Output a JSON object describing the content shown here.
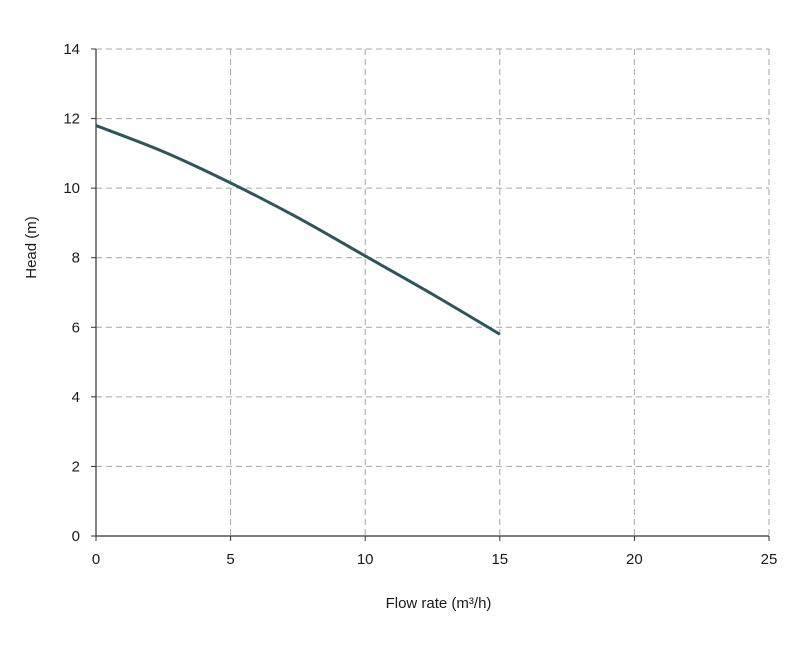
{
  "chart_data": {
    "type": "line",
    "title": "",
    "xlabel": "Flow rate (m³/h)",
    "ylabel": "Head (m)",
    "xlim": [
      0,
      25
    ],
    "ylim": [
      0,
      14
    ],
    "x_ticks": [
      0,
      5,
      10,
      15,
      20,
      25
    ],
    "y_ticks": [
      0,
      2,
      4,
      6,
      8,
      10,
      12,
      14
    ],
    "x_tick_labels": [
      "0",
      "5",
      "10",
      "15",
      "20",
      "25"
    ],
    "y_tick_labels": [
      "0",
      "2",
      "4",
      "6",
      "8",
      "10",
      "12",
      "14"
    ],
    "grid": true,
    "grid_style": "dashed",
    "series": [
      {
        "color": "#2b5759",
        "x": [
          0,
          2.5,
          5,
          7.5,
          10,
          12.5,
          15
        ],
        "y": [
          11.8,
          11.05,
          10.15,
          9.15,
          8.05,
          6.95,
          5.8
        ]
      }
    ]
  }
}
